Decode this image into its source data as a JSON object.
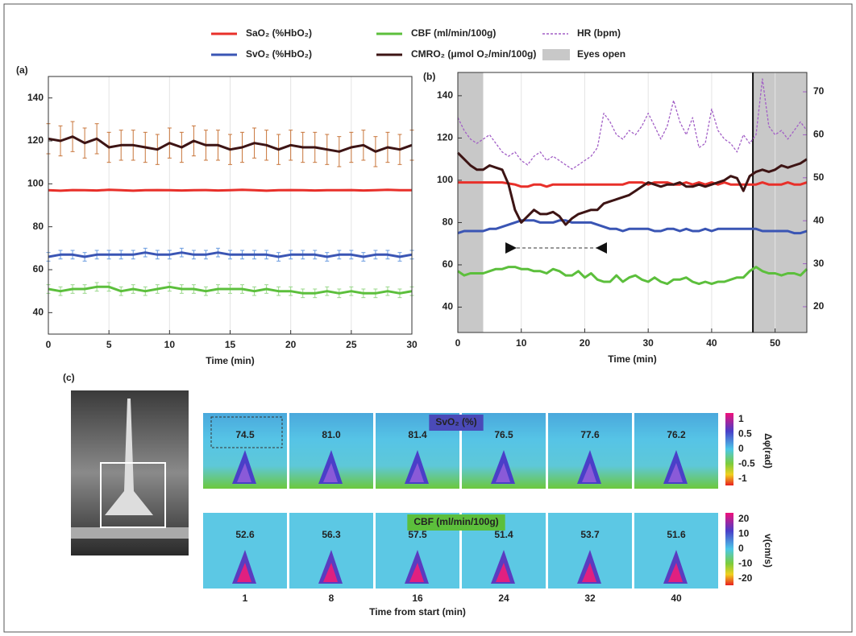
{
  "chart_data": [
    {
      "type": "line",
      "label": "(a)",
      "xlabel": "Time (min)",
      "xlim": [
        0,
        30
      ],
      "xticks": [
        0,
        5,
        10,
        15,
        20,
        25,
        30
      ],
      "ylim": [
        30,
        150
      ],
      "yticks": [
        40,
        60,
        80,
        100,
        120,
        140
      ],
      "grid": "x",
      "x": [
        0,
        1,
        2,
        3,
        4,
        5,
        6,
        7,
        8,
        9,
        10,
        11,
        12,
        13,
        14,
        15,
        16,
        17,
        18,
        19,
        20,
        21,
        22,
        23,
        24,
        25,
        26,
        27,
        28,
        29,
        30
      ],
      "series": [
        {
          "color": "#e8302a",
          "values": [
            97,
            96.8,
            97.1,
            97,
            96.9,
            97.2,
            97,
            96.8,
            97,
            97.1,
            97,
            96.9,
            97,
            97.1,
            96.9,
            97,
            97.2,
            97,
            96.8,
            97,
            97.1,
            97,
            96.9,
            97,
            97,
            97.1,
            96.9,
            97,
            97.2,
            97,
            97
          ]
        },
        {
          "color": "#3a55b4",
          "error": 2,
          "error_color": "#6a9be0",
          "values": [
            66,
            67,
            67,
            66,
            67,
            67,
            67,
            67,
            68,
            67,
            67,
            68,
            67,
            67,
            68,
            67,
            67,
            67,
            67,
            66,
            67,
            67,
            67,
            66,
            67,
            67,
            66,
            67,
            67,
            66,
            67
          ]
        },
        {
          "color": "#5cbf3c",
          "error": 2,
          "error_color": "#9ad88a",
          "values": [
            51,
            50,
            51,
            51,
            52,
            52,
            50,
            51,
            50,
            51,
            52,
            51,
            51,
            50,
            51,
            51,
            51,
            50,
            51,
            50,
            50,
            49,
            49,
            50,
            49,
            50,
            49,
            49,
            50,
            49,
            50
          ]
        },
        {
          "color": "#3d1414",
          "error": 7,
          "error_color": "#c8753a",
          "values": [
            121,
            120,
            122,
            119,
            121,
            117,
            118,
            118,
            117,
            116,
            119,
            117,
            120,
            118,
            118,
            116,
            117,
            119,
            118,
            116,
            118,
            117,
            117,
            116,
            115,
            117,
            118,
            115,
            117,
            116,
            118
          ]
        }
      ]
    },
    {
      "type": "line",
      "label": "(b)",
      "xlabel": "Time (min)",
      "xlim": [
        0,
        55
      ],
      "xticks": [
        0,
        10,
        20,
        30,
        40,
        50
      ],
      "ylim": [
        28,
        151
      ],
      "yticks": [
        40,
        60,
        80,
        100,
        120,
        140
      ],
      "y2lim": [
        14,
        74.5
      ],
      "y2ticks": [
        20,
        30,
        40,
        50,
        60,
        70
      ],
      "y2color": "#a25fc6",
      "grid": "x",
      "x": [
        0,
        1,
        2,
        3,
        4,
        5,
        6,
        7,
        8,
        9,
        10,
        11,
        12,
        13,
        14,
        15,
        16,
        17,
        18,
        19,
        20,
        21,
        22,
        23,
        24,
        25,
        26,
        27,
        28,
        29,
        30,
        31,
        32,
        33,
        34,
        35,
        36,
        37,
        38,
        39,
        40,
        41,
        42,
        43,
        44,
        45,
        46,
        47,
        48,
        49,
        50,
        51,
        52,
        53,
        54,
        55
      ],
      "shading": {
        "name": "Eyes open",
        "color": "#c8c8c8",
        "ranges": [
          [
            0,
            4
          ],
          [
            46.5,
            55
          ]
        ]
      },
      "interval": {
        "x": [
          7.5,
          23.5
        ],
        "y": 68
      },
      "series": [
        {
          "name": "SaO₂ (%HbO₂)",
          "color": "#e8302a",
          "values": [
            99,
            99,
            99,
            99,
            99,
            99,
            99,
            99,
            98.5,
            98,
            97,
            97,
            98,
            98,
            97,
            98,
            98,
            98,
            98,
            98,
            98,
            98,
            98,
            98,
            98,
            98,
            98,
            99,
            99,
            99,
            98,
            99,
            99,
            99,
            98,
            98,
            99,
            98,
            99,
            98,
            99,
            98,
            99,
            98,
            98,
            98,
            98,
            98,
            99,
            98,
            98,
            98,
            99,
            98,
            98,
            99
          ]
        },
        {
          "name": "SvO₂ (%HbO₂)",
          "color": "#3a55b4",
          "values": [
            75,
            76,
            76,
            76,
            76,
            77,
            77,
            78,
            79,
            80,
            81,
            81,
            81,
            80,
            80,
            80,
            81,
            81,
            80,
            80,
            80,
            80,
            79,
            78,
            77,
            77,
            76,
            77,
            77,
            77,
            77,
            76,
            76,
            77,
            77,
            76,
            77,
            76,
            76,
            77,
            76,
            77,
            77,
            77,
            77,
            77,
            77,
            77,
            76,
            76,
            76,
            76,
            76,
            75,
            75,
            76
          ]
        },
        {
          "name": "CBF (ml/min/100g)",
          "color": "#5cbf3c",
          "values": [
            57,
            55,
            56,
            56,
            56,
            57,
            58,
            58,
            59,
            59,
            58,
            58,
            57,
            57,
            56,
            58,
            57,
            55,
            55,
            57,
            54,
            56,
            53,
            52,
            52,
            55,
            52,
            54,
            55,
            53,
            52,
            54,
            52,
            51,
            53,
            53,
            54,
            52,
            51,
            52,
            51,
            52,
            52,
            53,
            54,
            54,
            57,
            59,
            57,
            56,
            56,
            55,
            56,
            56,
            55,
            58
          ]
        },
        {
          "name": "CMRO₂ (μmol O₂/min/100g)",
          "color": "#3d1414",
          "values": [
            113,
            110,
            107,
            105,
            105,
            107,
            106,
            105,
            98,
            86,
            80,
            83,
            86,
            84,
            84,
            85,
            83,
            79,
            82,
            84,
            85,
            86,
            86,
            89,
            90,
            91,
            92,
            93,
            95,
            97,
            99,
            98,
            97,
            98,
            98,
            99,
            97,
            97,
            98,
            97,
            98,
            99,
            100,
            102,
            101,
            95,
            102,
            104,
            105,
            104,
            105,
            107,
            106,
            107,
            108,
            110
          ]
        },
        {
          "name": "HR (bpm)",
          "color": "#a25fc6",
          "axis": "y2",
          "dash": true,
          "values": [
            64,
            61,
            59,
            58,
            59,
            60,
            58,
            56,
            55,
            56,
            54,
            53,
            55,
            56,
            54,
            55,
            54,
            53,
            52,
            53,
            54,
            55,
            57,
            65,
            63,
            60,
            59,
            61,
            60,
            62,
            65,
            62,
            59,
            62,
            68,
            63,
            60,
            64,
            57,
            58,
            66,
            61,
            59,
            58,
            56,
            60,
            58,
            60,
            73,
            62,
            60,
            61,
            59,
            61,
            63,
            61
          ]
        }
      ]
    }
  ],
  "panel_c": {
    "label": "(c)",
    "xlabel": "Time from start (min)",
    "times": [
      1,
      8,
      16,
      24,
      32,
      40
    ],
    "rows": [
      {
        "title": "SvO₂ (%)",
        "values": [
          "74.5",
          "81.0",
          "81.4",
          "76.5",
          "77.6",
          "76.2"
        ],
        "colorbar_label": "Δφ(rad)",
        "colorbar_ticks": [
          1,
          0.5,
          0,
          -0.5,
          -1
        ]
      },
      {
        "title": "CBF (ml/min/100g)",
        "values": [
          "52.6",
          "56.3",
          "57.5",
          "51.4",
          "53.7",
          "51.6"
        ],
        "colorbar_label": "v(cm/s)",
        "colorbar_ticks": [
          20,
          10,
          0,
          -10,
          -20
        ]
      }
    ]
  }
}
